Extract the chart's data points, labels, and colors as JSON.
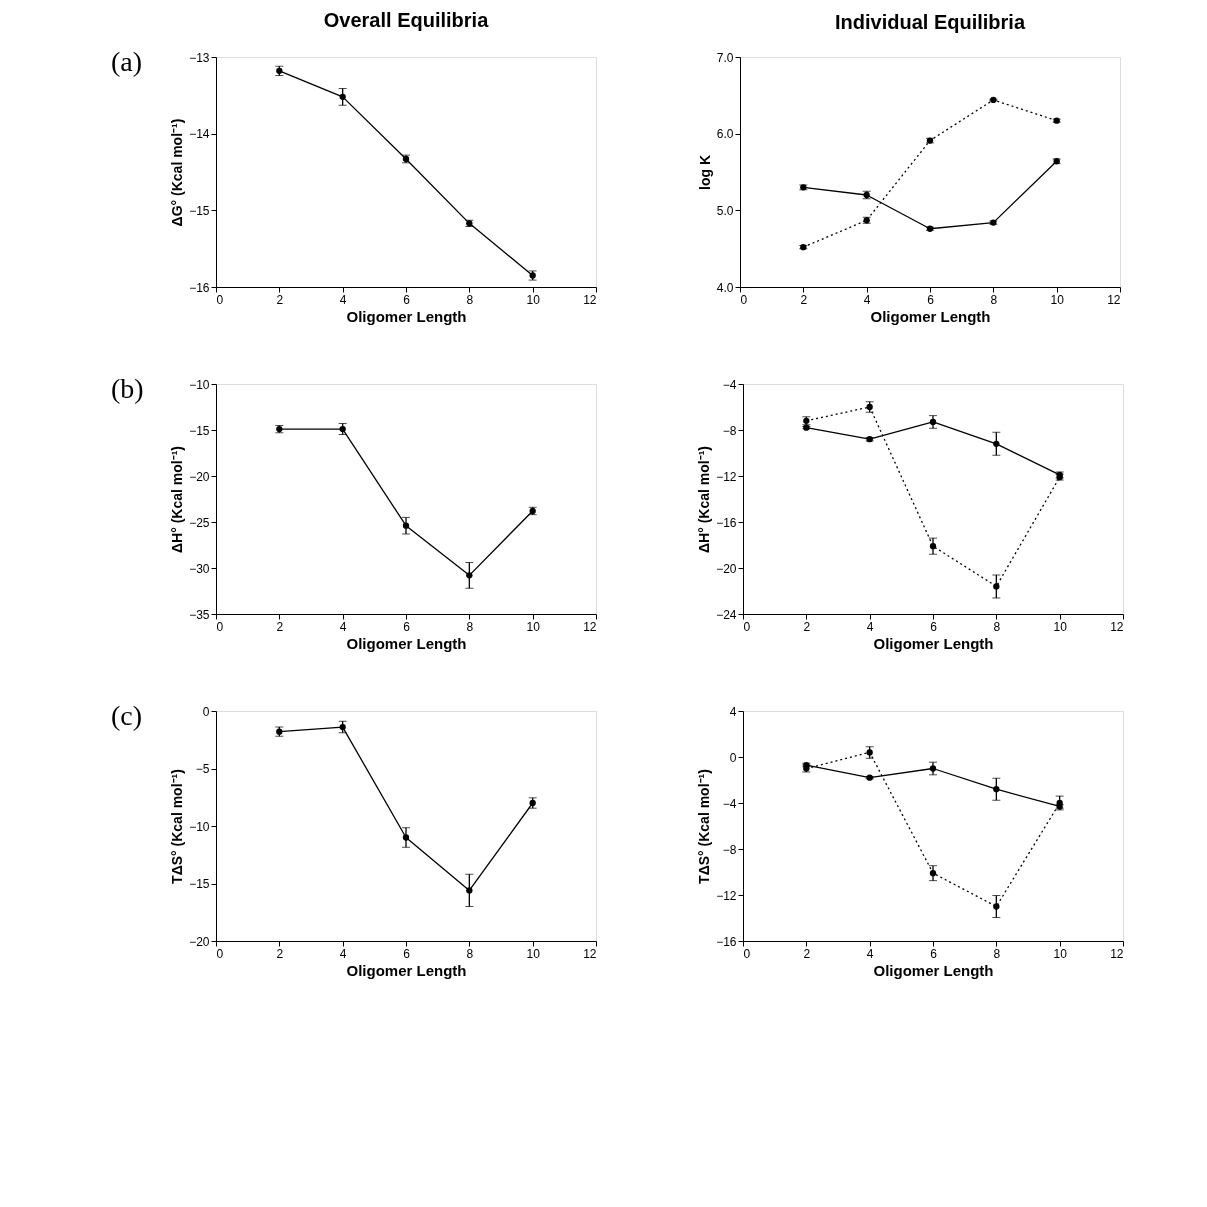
{
  "chart_data": [
    {
      "type": "line",
      "title": "Overall Equilibria",
      "annotations": [
        "(a)"
      ],
      "xlabel": "Oligomer Length",
      "ylabel": "ΔG° (Kcal mol⁻¹)",
      "xlim": [
        0,
        12
      ],
      "xticks": [
        0,
        2,
        4,
        6,
        8,
        10,
        12
      ],
      "ylim": [
        -16,
        -13
      ],
      "yticks": [
        -16,
        -15,
        -14,
        -13
      ],
      "grid": false,
      "marker": "circle",
      "series": [
        {
          "color": "#000000",
          "line_style": "solid",
          "x": [
            2,
            4,
            6,
            8,
            10
          ],
          "values": [
            -13.18,
            -13.52,
            -14.33,
            -15.17,
            -15.85
          ],
          "errors": [
            0.06,
            0.11,
            0.05,
            0.04,
            0.06
          ]
        }
      ]
    },
    {
      "type": "line",
      "title": "Individual Equilibria",
      "xlabel": "Oligomer Length",
      "ylabel": "log K",
      "xlim": [
        0,
        12
      ],
      "xticks": [
        0,
        2,
        4,
        6,
        8,
        10,
        12
      ],
      "ylim": [
        4.0,
        7.0
      ],
      "yticks": [
        {
          "value": 4,
          "label": "4.0"
        },
        {
          "value": 5,
          "label": "5.0"
        },
        {
          "value": 6,
          "label": "6.0"
        },
        {
          "value": 7,
          "label": "7.0"
        }
      ],
      "grid": false,
      "marker": "circle",
      "series": [
        {
          "color": "#000000",
          "line_style": "solid",
          "x": [
            2,
            4,
            6,
            8,
            10
          ],
          "values": [
            5.3,
            5.2,
            4.76,
            4.84,
            5.64
          ],
          "errors": [
            0.03,
            0.05,
            0.02,
            0.02,
            0.03
          ]
        },
        {
          "color": "#000000",
          "line_style": "dotted",
          "x": [
            2,
            4,
            6,
            8,
            10
          ],
          "values": [
            4.52,
            4.87,
            5.91,
            6.44,
            6.17
          ],
          "errors": [
            0.02,
            0.04,
            0.03,
            0.01,
            0.02
          ]
        }
      ]
    },
    {
      "type": "line",
      "annotations": [
        "(b)"
      ],
      "xlabel": "Oligomer Length",
      "ylabel": "ΔH° (Kcal mol⁻¹)",
      "xlim": [
        0,
        12
      ],
      "xticks": [
        0,
        2,
        4,
        6,
        8,
        10,
        12
      ],
      "ylim": [
        -35,
        -10
      ],
      "yticks": [
        -35,
        -30,
        -25,
        -20,
        -15,
        -10
      ],
      "grid": false,
      "marker": "circle",
      "series": [
        {
          "color": "#000000",
          "line_style": "solid",
          "x": [
            2,
            4,
            6,
            8,
            10
          ],
          "values": [
            -14.9,
            -14.9,
            -25.4,
            -30.8,
            -23.8
          ],
          "errors": [
            0.4,
            0.6,
            0.9,
            1.4,
            0.4
          ]
        }
      ]
    },
    {
      "type": "line",
      "xlabel": "Oligomer Length",
      "ylabel": "ΔH° (Kcal mol⁻¹)",
      "xlim": [
        0,
        12
      ],
      "xticks": [
        0,
        2,
        4,
        6,
        8,
        10,
        12
      ],
      "ylim": [
        -24,
        -4
      ],
      "yticks": [
        -24,
        -20,
        -16,
        -12,
        -8,
        -4
      ],
      "grid": false,
      "marker": "circle",
      "series": [
        {
          "color": "#000000",
          "line_style": "solid",
          "x": [
            2,
            4,
            6,
            8,
            10
          ],
          "values": [
            -7.8,
            -8.8,
            -7.3,
            -9.2,
            -11.9
          ],
          "errors": [
            0.1,
            0.15,
            0.55,
            1.0,
            0.25
          ]
        },
        {
          "color": "#000000",
          "line_style": "dotted",
          "x": [
            2,
            4,
            6,
            8,
            10
          ],
          "values": [
            -7.2,
            -6.0,
            -18.1,
            -21.6,
            -12.1
          ],
          "errors": [
            0.35,
            0.45,
            0.7,
            1.0,
            0.25
          ]
        }
      ]
    },
    {
      "type": "line",
      "annotations": [
        "(c)"
      ],
      "xlabel": "Oligomer Length",
      "ylabel": "TΔS° (Kcal mol⁻¹)",
      "xlim": [
        0,
        12
      ],
      "xticks": [
        0,
        2,
        4,
        6,
        8,
        10,
        12
      ],
      "ylim": [
        -20,
        0
      ],
      "yticks": [
        -20,
        -15,
        -10,
        -5,
        0
      ],
      "grid": false,
      "marker": "circle",
      "series": [
        {
          "color": "#000000",
          "line_style": "solid",
          "x": [
            2,
            4,
            6,
            8,
            10
          ],
          "values": [
            -1.8,
            -1.4,
            -11.0,
            -15.6,
            -8.0
          ],
          "errors": [
            0.4,
            0.5,
            0.85,
            1.4,
            0.45
          ]
        }
      ]
    },
    {
      "type": "line",
      "xlabel": "Oligomer Length",
      "ylabel": "TΔS° (Kcal mol⁻¹)",
      "xlim": [
        0,
        12
      ],
      "xticks": [
        0,
        2,
        4,
        6,
        8,
        10,
        12
      ],
      "ylim": [
        -16,
        4
      ],
      "yticks": [
        -16,
        -12,
        -8,
        -4,
        0,
        4
      ],
      "grid": false,
      "marker": "circle",
      "series": [
        {
          "color": "#000000",
          "line_style": "solid",
          "x": [
            2,
            4,
            6,
            8,
            10
          ],
          "values": [
            -0.7,
            -1.8,
            -1.0,
            -2.8,
            -4.3
          ],
          "errors": [
            0.15,
            0.1,
            0.55,
            0.95,
            0.15
          ]
        },
        {
          "color": "#000000",
          "line_style": "dotted",
          "x": [
            2,
            4,
            6,
            8,
            10
          ],
          "values": [
            -1.0,
            0.4,
            -10.1,
            -13.0,
            -4.0
          ],
          "errors": [
            0.3,
            0.5,
            0.65,
            0.95,
            0.6
          ]
        }
      ]
    }
  ]
}
